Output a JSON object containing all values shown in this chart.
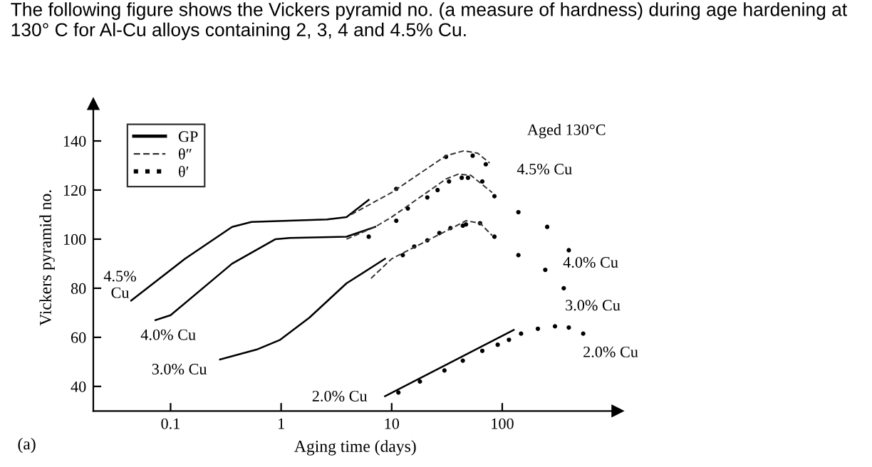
{
  "chart_data": {
    "type": "line",
    "title": "The following figure shows the Vickers pyramid no. (a measure of hardness) during age hardening at 130° C for Al-Cu alloys containing 2, 3, 4 and 4.5% Cu.",
    "xlabel": "Aging time (days)",
    "ylabel": "Vickers pyramid no.",
    "log": "x",
    "xlim": [
      0.02,
      1100
    ],
    "ylim": [
      30,
      155
    ],
    "xticks": [
      0.1,
      1,
      10,
      100
    ],
    "yticks": [
      40,
      60,
      80,
      100,
      120,
      140
    ],
    "grid": false,
    "legend": "top left",
    "series": [
      {
        "name": "GP",
        "line_style": "solid",
        "color": "#000000",
        "x": [
          0.044,
          0.135,
          0.36,
          0.54,
          2.6,
          3.9,
          6.2,
          null,
          0.073,
          0.1,
          0.36,
          0.89,
          1.2,
          3.9,
          7.1,
          null,
          0.28,
          0.6,
          0.98,
          1.8,
          3.9,
          8.7,
          null,
          8.7,
          127
        ],
        "values": [
          75,
          92,
          105,
          107,
          108,
          109,
          116,
          null,
          67,
          69,
          90,
          100,
          100.5,
          101,
          105,
          null,
          51,
          55,
          59,
          68,
          82,
          92,
          null,
          36,
          63
        ]
      },
      {
        "name": "θ″",
        "line_style": "dashed",
        "color": "#333333",
        "x": [
          4.3,
          10,
          31,
          45,
          60,
          77,
          null,
          3.9,
          7.1,
          10,
          31,
          40,
          52,
          81,
          null,
          6.5,
          10,
          35,
          47,
          63,
          81
        ],
        "values": [
          110,
          119,
          134,
          136,
          135,
          131,
          null,
          100,
          105,
          109,
          124.5,
          126.5,
          126,
          119,
          null,
          84,
          92,
          104.5,
          107.5,
          106.5,
          101.5
        ]
      },
      {
        "name": "θ′",
        "type": "scatter",
        "marker": "circle",
        "color": "#000000",
        "x": [
          11,
          31,
          54,
          71,
          6.2,
          11,
          14,
          21,
          26,
          33,
          43,
          49,
          66,
          85,
          140,
          255,
          400,
          12.6,
          16,
          21,
          27,
          34,
          44,
          47,
          63,
          85,
          140,
          245,
          360,
          11.5,
          18,
          30,
          44,
          66,
          91,
          115,
          148,
          210,
          300,
          400,
          540
        ],
        "values": [
          120.5,
          133.5,
          134,
          130.5,
          101,
          107.5,
          112.5,
          117,
          120,
          123.5,
          125,
          125,
          123.5,
          117.5,
          111,
          105,
          95.5,
          93.5,
          97,
          99.5,
          102.5,
          104.5,
          105.5,
          106,
          106.5,
          101,
          93.5,
          87.5,
          80,
          37.5,
          42,
          46.5,
          50.5,
          54.5,
          57,
          59,
          61.5,
          63.5,
          64.5,
          64,
          61.5
        ]
      }
    ],
    "annotations": [
      "4.5%\nCu",
      "4.0% Cu",
      "3.0% Cu",
      "2.0% Cu",
      "4.5% Cu",
      "4.0% Cu",
      "3.0% Cu",
      "2.0% Cu",
      "Aged 130°C",
      "(a)"
    ]
  }
}
